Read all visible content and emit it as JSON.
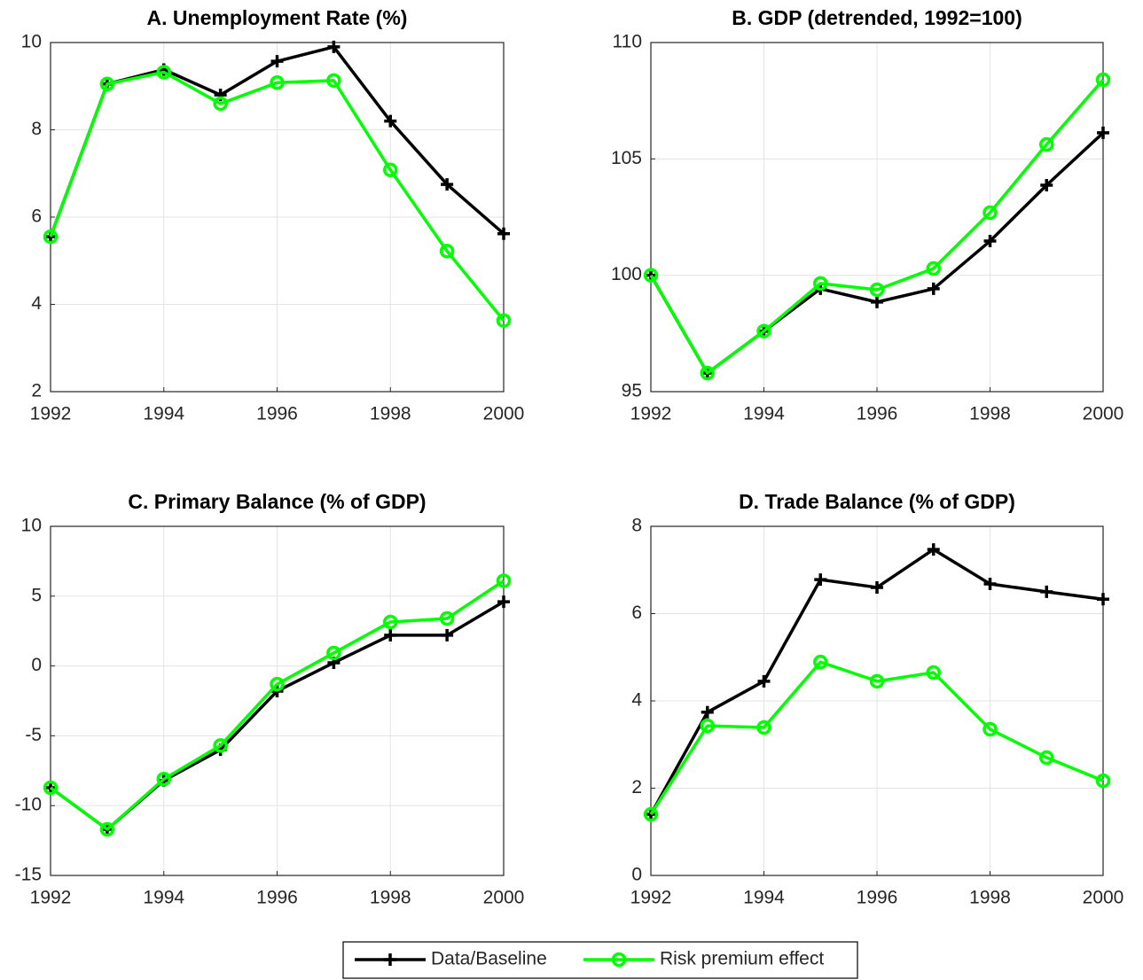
{
  "chart_data": [
    {
      "type": "line",
      "title": "A. Unemployment Rate (%)",
      "x": [
        1992,
        1993,
        1994,
        1995,
        1996,
        1997,
        1998,
        1999,
        2000
      ],
      "xlim": [
        1992,
        2000
      ],
      "xticks": [
        1992,
        1994,
        1996,
        1998,
        2000
      ],
      "ylim": [
        2,
        10
      ],
      "yticks": [
        2,
        4,
        6,
        8,
        10
      ],
      "grid": true,
      "series": [
        {
          "name": "Data/Baseline",
          "color": "#000000",
          "marker": "+",
          "values": [
            5.55,
            9.05,
            9.38,
            8.8,
            9.57,
            9.9,
            8.2,
            6.75,
            5.62
          ]
        },
        {
          "name": "Risk premium effect",
          "color": "#00ff00",
          "marker": "o",
          "values": [
            5.55,
            9.05,
            9.32,
            8.6,
            9.08,
            9.13,
            7.08,
            5.22,
            3.63
          ]
        }
      ]
    },
    {
      "type": "line",
      "title": "B. GDP (detrended, 1992=100)",
      "x": [
        1992,
        1993,
        1994,
        1995,
        1996,
        1997,
        1998,
        1999,
        2000
      ],
      "xlim": [
        1992,
        2000
      ],
      "xticks": [
        1992,
        1994,
        1996,
        1998,
        2000
      ],
      "ylim": [
        95,
        110
      ],
      "yticks": [
        95,
        100,
        105,
        110
      ],
      "grid": true,
      "series": [
        {
          "color": "#000000",
          "marker": "+",
          "values": [
            100,
            95.8,
            97.6,
            99.42,
            98.85,
            99.42,
            101.47,
            103.87,
            106.12
          ]
        },
        {
          "color": "#00ff00",
          "marker": "o",
          "values": [
            100,
            95.8,
            97.6,
            99.65,
            99.38,
            100.29,
            102.69,
            105.62,
            108.4
          ]
        }
      ]
    },
    {
      "type": "line",
      "title": "C. Primary Balance (% of GDP)",
      "x": [
        1992,
        1993,
        1994,
        1995,
        1996,
        1997,
        1998,
        1999,
        2000
      ],
      "xlim": [
        1992,
        2000
      ],
      "xticks": [
        1992,
        1994,
        1996,
        1998,
        2000
      ],
      "ylim": [
        -15,
        10
      ],
      "yticks": [
        -15,
        -10,
        -5,
        0,
        5,
        10
      ],
      "grid": true,
      "series": [
        {
          "color": "#000000",
          "marker": "+",
          "values": [
            -8.72,
            -11.7,
            -8.2,
            -6.0,
            -1.8,
            0.23,
            2.2,
            2.2,
            4.6
          ]
        },
        {
          "color": "#00ff00",
          "marker": "o",
          "values": [
            -8.72,
            -11.7,
            -8.1,
            -5.7,
            -1.3,
            0.93,
            3.15,
            3.4,
            6.1
          ]
        }
      ]
    },
    {
      "type": "line",
      "title": "D. Trade Balance (% of GDP)",
      "x": [
        1992,
        1993,
        1994,
        1995,
        1996,
        1997,
        1998,
        1999,
        2000
      ],
      "xlim": [
        1992,
        2000
      ],
      "xticks": [
        1992,
        1994,
        1996,
        1998,
        2000
      ],
      "ylim": [
        0,
        8
      ],
      "yticks": [
        0,
        2,
        4,
        6,
        8
      ],
      "grid": true,
      "series": [
        {
          "color": "#000000",
          "marker": "+",
          "values": [
            1.4,
            3.74,
            4.45,
            6.78,
            6.6,
            7.47,
            6.68,
            6.5,
            6.33
          ]
        },
        {
          "color": "#00ff00",
          "marker": "o",
          "values": [
            1.4,
            3.43,
            3.39,
            4.89,
            4.45,
            4.65,
            3.35,
            2.7,
            2.17
          ]
        }
      ]
    }
  ]
}
